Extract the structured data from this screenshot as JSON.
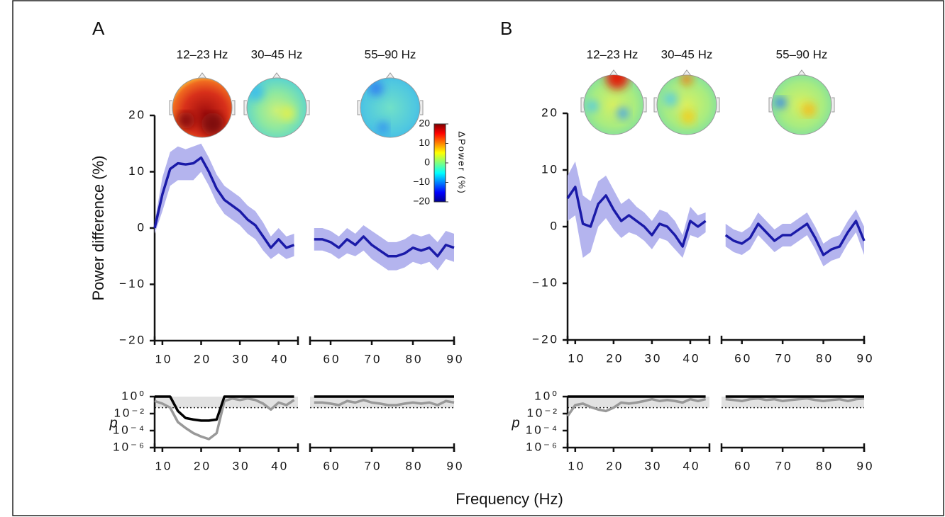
{
  "panels": [
    {
      "letter": "A",
      "band_labels": [
        "12–23 Hz",
        "30–45 Hz",
        "55–90 Hz"
      ]
    },
    {
      "letter": "B",
      "band_labels": [
        "12–23 Hz",
        "30–45 Hz",
        "55–90 Hz"
      ]
    }
  ],
  "ylabel": "Power difference (%)",
  "xlabel": "Frequency (Hz)",
  "colorbar": {
    "lim": [
      -20,
      20
    ],
    "ticks": [
      20,
      10,
      0,
      {
        "value": -10,
        "label": "−10"
      },
      {
        "value": -20,
        "label": "−20"
      }
    ],
    "label": "ΔPower (%)"
  },
  "chart_data": [
    {
      "type": "line",
      "segments": [
        [
          8,
          45
        ],
        [
          55,
          90
        ]
      ],
      "ylim": [
        -20,
        20
      ],
      "yticks": [
        {
          "value": -20,
          "label": "−20"
        },
        {
          "value": -10,
          "label": "−10"
        },
        0,
        10,
        20
      ],
      "xticks": [
        10,
        20,
        30,
        40,
        60,
        70,
        80,
        90
      ],
      "x": [
        8,
        10,
        12,
        14,
        16,
        18,
        20,
        22,
        24,
        26,
        28,
        30,
        32,
        34,
        36,
        38,
        40,
        42,
        44,
        56,
        58,
        60,
        62,
        64,
        66,
        68,
        70,
        72,
        74,
        76,
        78,
        80,
        82,
        84,
        86,
        88,
        90
      ],
      "series": [
        {
          "color": "#1a1aa8",
          "band_color": "#b4b4ee",
          "values": [
            0,
            6,
            10.5,
            11.5,
            11.3,
            11.5,
            12.5,
            10,
            7,
            5,
            4,
            3,
            1.5,
            0.5,
            -1.5,
            -3.5,
            -2,
            -3.5,
            -3,
            -2,
            -2,
            -2.5,
            -3.5,
            -2,
            -3,
            -1.5,
            -3,
            -4,
            -5,
            -5,
            -4.5,
            -3.5,
            -4,
            -3.5,
            -5,
            -3,
            -3.5
          ],
          "lower": [
            -1,
            3,
            7.5,
            8.5,
            8.5,
            8.5,
            10,
            7.5,
            4.5,
            2.5,
            1.5,
            0.5,
            -1,
            -2,
            -4,
            -5.5,
            -4.5,
            -5.5,
            -5,
            -4,
            -4,
            -4.5,
            -5.5,
            -4.5,
            -5,
            -4,
            -5.5,
            -6.5,
            -7.5,
            -7.5,
            -7,
            -6,
            -6.5,
            -6,
            -7.5,
            -5.5,
            -6
          ],
          "upper": [
            1,
            9,
            13.5,
            14.5,
            14,
            14.5,
            15,
            12.5,
            9.5,
            7.5,
            6.5,
            5.5,
            4,
            3,
            1,
            -1.5,
            0,
            -1.5,
            -1,
            0,
            0,
            -0.5,
            -1.5,
            0,
            -1,
            0.5,
            -0.5,
            -1.5,
            -2.5,
            -2.5,
            -2,
            -1,
            -1.5,
            -1,
            -2.5,
            -0.5,
            -1
          ]
        }
      ]
    },
    {
      "type": "pline",
      "segments": [
        [
          8,
          45
        ],
        [
          55,
          90
        ]
      ],
      "ylim": [
        1e-06,
        1
      ],
      "log": true,
      "ylabel": "p",
      "threshold": 0.05,
      "yticks": [
        {
          "value": 1,
          "label": "10⁰"
        },
        {
          "value": 0.01,
          "label": "10⁻²"
        },
        {
          "value": 0.0001,
          "label": "10⁻⁴"
        },
        {
          "value": 1e-06,
          "label": "10⁻⁶"
        }
      ],
      "xticks": [
        10,
        20,
        30,
        40,
        60,
        70,
        80,
        90
      ],
      "x": [
        8,
        10,
        12,
        14,
        16,
        18,
        20,
        22,
        24,
        26,
        28,
        30,
        32,
        34,
        36,
        38,
        40,
        42,
        44,
        56,
        58,
        60,
        62,
        64,
        66,
        68,
        70,
        72,
        74,
        76,
        78,
        80,
        82,
        84,
        86,
        88,
        90
      ],
      "series": [
        {
          "color": "#999999",
          "values": [
            0.3,
            0.15,
            0.05,
            0.001,
            0.0002,
            5e-05,
            2e-05,
            1e-05,
            5e-05,
            0.3,
            0.6,
            0.4,
            0.6,
            0.4,
            0.15,
            0.03,
            0.2,
            0.1,
            0.4,
            0.2,
            0.2,
            0.15,
            0.1,
            0.3,
            0.2,
            0.4,
            0.2,
            0.15,
            0.1,
            0.1,
            0.15,
            0.2,
            0.15,
            0.2,
            0.1,
            0.3,
            0.2
          ]
        },
        {
          "color": "#000000",
          "values": [
            1,
            1,
            1,
            0.02,
            0.003,
            0.002,
            0.0015,
            0.0015,
            0.002,
            1,
            1,
            1,
            1,
            1,
            1,
            1,
            1,
            1,
            1,
            1,
            1,
            1,
            1,
            1,
            1,
            1,
            1,
            1,
            1,
            1,
            1,
            1,
            1,
            1,
            1,
            1,
            1
          ]
        }
      ]
    },
    {
      "type": "line",
      "segments": [
        [
          8,
          45
        ],
        [
          55,
          90
        ]
      ],
      "ylim": [
        -20,
        20
      ],
      "yticks": [
        {
          "value": -20,
          "label": "−20"
        },
        {
          "value": -10,
          "label": "−10"
        },
        0,
        10,
        20
      ],
      "xticks": [
        10,
        20,
        30,
        40,
        60,
        70,
        80,
        90
      ],
      "x": [
        8,
        10,
        12,
        14,
        16,
        18,
        20,
        22,
        24,
        26,
        28,
        30,
        32,
        34,
        36,
        38,
        40,
        42,
        44,
        56,
        58,
        60,
        62,
        64,
        66,
        68,
        70,
        72,
        74,
        76,
        78,
        80,
        82,
        84,
        86,
        88,
        90
      ],
      "series": [
        {
          "color": "#1a1aa8",
          "band_color": "#b4b4ee",
          "values": [
            5,
            7,
            0.5,
            0,
            4,
            5.5,
            3,
            1,
            2,
            1,
            0,
            -1.5,
            0.5,
            0,
            -1.5,
            -3.5,
            1,
            0,
            1,
            -1.5,
            -2.5,
            -3,
            -2,
            0.5,
            -1,
            -2.5,
            -1.5,
            -1.5,
            -0.5,
            0.5,
            -2,
            -5,
            -4,
            -3.5,
            -1,
            1,
            -2.5
          ],
          "lower": [
            1,
            2,
            -5.5,
            -4.5,
            0,
            1.5,
            -0.5,
            -2,
            -1,
            -1.5,
            -2.5,
            -4,
            -2,
            -2.5,
            -4,
            -5.5,
            -1.5,
            -2,
            -1,
            -3.5,
            -4.5,
            -5,
            -4,
            -1.5,
            -3,
            -4.5,
            -3.5,
            -3.5,
            -2.5,
            -1.5,
            -4,
            -7,
            -6,
            -5.5,
            -3,
            -1,
            -5
          ],
          "upper": [
            9,
            11.5,
            5.5,
            4.5,
            8,
            9,
            6.5,
            4,
            5,
            3.5,
            2.5,
            1,
            3,
            2.5,
            1,
            -1.5,
            3.5,
            2,
            2.5,
            0.5,
            -0.5,
            -1,
            0,
            2.5,
            1,
            -0.5,
            0.5,
            0.5,
            1.5,
            2.5,
            0,
            -3,
            -2,
            -1.5,
            1,
            3,
            0
          ]
        }
      ]
    },
    {
      "type": "pline",
      "segments": [
        [
          8,
          45
        ],
        [
          55,
          90
        ]
      ],
      "ylim": [
        1e-06,
        1
      ],
      "log": true,
      "ylabel": "p",
      "threshold": 0.05,
      "yticks": [
        {
          "value": 1,
          "label": "10⁰"
        },
        {
          "value": 0.01,
          "label": "10⁻²"
        },
        {
          "value": 0.0001,
          "label": "10⁻⁴"
        },
        {
          "value": 1e-06,
          "label": "10⁻⁶"
        }
      ],
      "xticks": [
        10,
        20,
        30,
        40,
        60,
        70,
        80,
        90
      ],
      "x": [
        8,
        10,
        12,
        14,
        16,
        18,
        20,
        22,
        24,
        26,
        28,
        30,
        32,
        34,
        36,
        38,
        40,
        42,
        44,
        56,
        58,
        60,
        62,
        64,
        66,
        68,
        70,
        72,
        74,
        76,
        78,
        80,
        82,
        84,
        86,
        88,
        90
      ],
      "series": [
        {
          "color": "#999999",
          "values": [
            0.005,
            0.1,
            0.15,
            0.06,
            0.03,
            0.02,
            0.05,
            0.2,
            0.15,
            0.2,
            0.3,
            0.5,
            0.3,
            0.4,
            0.3,
            0.2,
            0.5,
            0.3,
            0.5,
            0.5,
            0.4,
            0.3,
            0.5,
            0.6,
            0.4,
            0.5,
            0.3,
            0.4,
            0.5,
            0.6,
            0.4,
            0.3,
            0.4,
            0.5,
            0.3,
            0.5,
            0.6
          ]
        },
        {
          "color": "#000000",
          "values": [
            1,
            1,
            1,
            1,
            1,
            1,
            1,
            1,
            1,
            1,
            1,
            1,
            1,
            1,
            1,
            1,
            1,
            1,
            1,
            1,
            1,
            1,
            1,
            1,
            1,
            1,
            1,
            1,
            1,
            1,
            1,
            1,
            1,
            1,
            1,
            1,
            1
          ]
        }
      ]
    }
  ]
}
